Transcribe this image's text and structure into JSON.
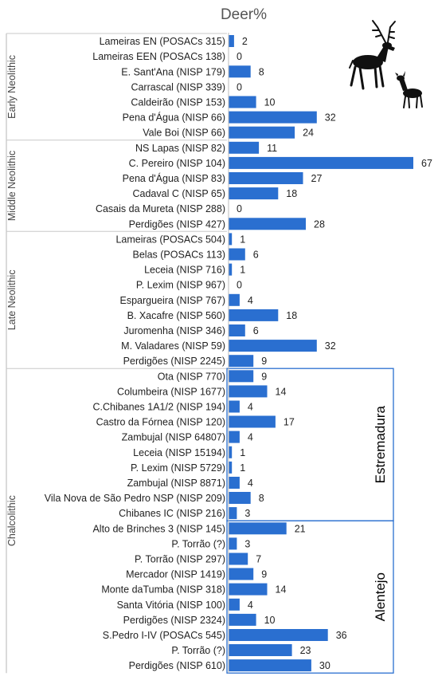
{
  "chart_data": {
    "type": "bar",
    "orientation": "horizontal",
    "title": "Deer%",
    "xlim": [
      0,
      67
    ],
    "grid": false,
    "categories": [
      "Lameiras EN (POSACs 315)",
      "Lameiras EEN (POSACs 138)",
      "E. Sant'Ana (NISP 179)",
      "Carrascal (NISP 339)",
      "Caldeirão (NISP 153)",
      "Pena d'Água (NISP 66)",
      "Vale Boi (NISP 66)",
      "NS Lapas (NISP 82)",
      "C. Pereiro (NISP 104)",
      "Pena d'Água (NISP 83)",
      "Cadaval C (NISP 65)",
      "Casais da Mureta (NISP 288)",
      "Perdigões (NISP 427)",
      "Lameiras (POSACs 504)",
      "Belas (POSACs 113)",
      "Leceia (NISP 716)",
      "P. Lexim (NISP 967)",
      "Espargueira (NISP 767)",
      "B. Xacafre (NISP 560)",
      "Juromenha (NISP 346)",
      "M. Valadares (NISP 59)",
      "Perdigões (NISP 2245)",
      "Ota (NISP 770)",
      "Columbeira (NISP 1677)",
      "C.Chibanes 1A1/2 (NISP 194)",
      "Castro da Fórnea (NISP 120)",
      "Zambujal (NISP 64807)",
      "Leceia (NISP 15194)",
      "P. Lexim (NISP 5729)",
      "Zambujal (NISP 8871)",
      "Vila Nova de São Pedro NSP (NISP 209)",
      "Chibanes IC (NISP 216)",
      "Alto de Brinches 3 (NISP 145)",
      "P. Torrão (?)",
      "P. Torrão (NISP 297)",
      "Mercador (NISP 1419)",
      "Monte daTumba (NISP 318)",
      "Santa Vitória (NISP 100)",
      "Perdigões (NISP 2324)",
      "S.Pedro I-IV (POSACs 545)",
      "P. Torrão (?)",
      "Perdigões (NISP 610)"
    ],
    "values": [
      2,
      0,
      8,
      0,
      10,
      32,
      24,
      11,
      67,
      27,
      18,
      0,
      28,
      1,
      6,
      1,
      0,
      4,
      18,
      6,
      32,
      9,
      9,
      14,
      4,
      17,
      4,
      1,
      1,
      4,
      8,
      3,
      21,
      3,
      7,
      9,
      14,
      4,
      10,
      36,
      23,
      30
    ],
    "bar_values": [
      2,
      0,
      8,
      0,
      10,
      32,
      24,
      11,
      67,
      27,
      18,
      0,
      28,
      1.2,
      6,
      1.2,
      0,
      4,
      18,
      6,
      32,
      9,
      9,
      14,
      4,
      17,
      4,
      1.2,
      1.2,
      4,
      8,
      3,
      21,
      3,
      7,
      9,
      14,
      4,
      10,
      36,
      23,
      30
    ],
    "bar_color": "#2a6fd0",
    "periods": [
      {
        "label": "Early Neolithic",
        "start": 0,
        "end": 6
      },
      {
        "label": "Middle Neolithic",
        "start": 7,
        "end": 12
      },
      {
        "label": "Late Neolithic",
        "start": 13,
        "end": 21
      },
      {
        "label": "Chalcolithic",
        "start": 22,
        "end": 41
      }
    ],
    "regions": [
      {
        "label": "Estremadura",
        "start": 22,
        "end": 31
      },
      {
        "label": "Alentejo",
        "start": 32,
        "end": 41
      }
    ],
    "region_color": "#2a6fd0",
    "icon": "deer-icon"
  }
}
